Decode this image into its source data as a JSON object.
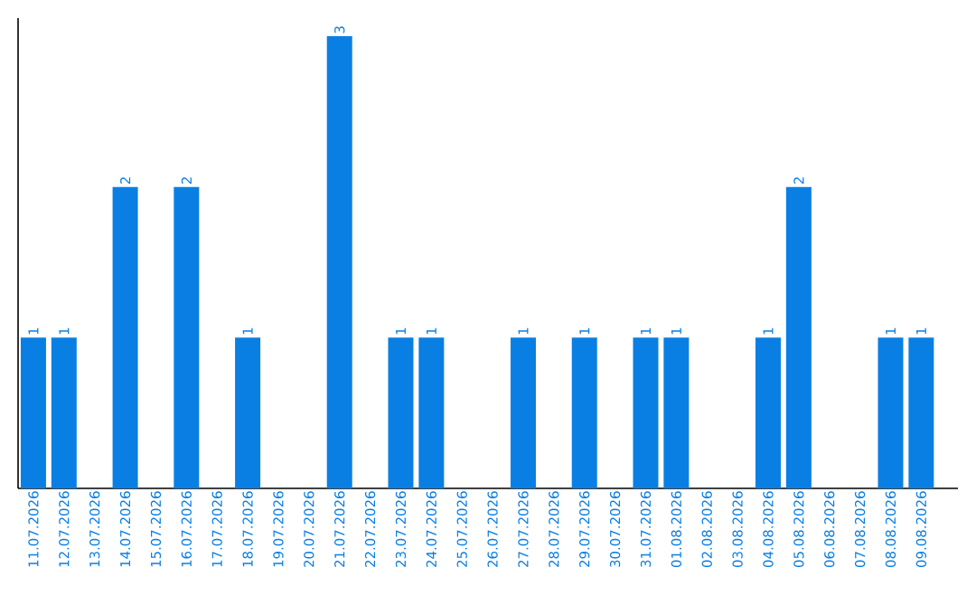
{
  "chart_data": {
    "type": "bar",
    "categories": [
      "11.07.2026",
      "12.07.2026",
      "13.07.2026",
      "14.07.2026",
      "15.07.2026",
      "16.07.2026",
      "17.07.2026",
      "18.07.2026",
      "19.07.2026",
      "20.07.2026",
      "21.07.2026",
      "22.07.2026",
      "23.07.2026",
      "24.07.2026",
      "25.07.2026",
      "26.07.2026",
      "27.07.2026",
      "28.07.2026",
      "29.07.2026",
      "30.07.2026",
      "31.07.2026",
      "01.08.2026",
      "02.08.2026",
      "03.08.2026",
      "04.08.2026",
      "05.08.2026",
      "06.08.2026",
      "07.08.2026",
      "08.08.2026",
      "09.08.2026"
    ],
    "values": [
      1,
      1,
      0,
      2,
      0,
      2,
      0,
      1,
      0,
      0,
      3,
      0,
      1,
      1,
      0,
      0,
      1,
      0,
      1,
      0,
      1,
      1,
      0,
      0,
      1,
      2,
      0,
      0,
      1,
      1
    ],
    "value_labels": [
      "1",
      "1",
      null,
      "2",
      null,
      "2",
      null,
      "1",
      null,
      null,
      "3",
      null,
      "1",
      "1",
      null,
      null,
      "1",
      null,
      "1",
      null,
      "1",
      "1",
      null,
      null,
      "1",
      "2",
      null,
      null,
      "1",
      "1"
    ],
    "color": "#0a7fe3",
    "tick_labels": "x"
  }
}
